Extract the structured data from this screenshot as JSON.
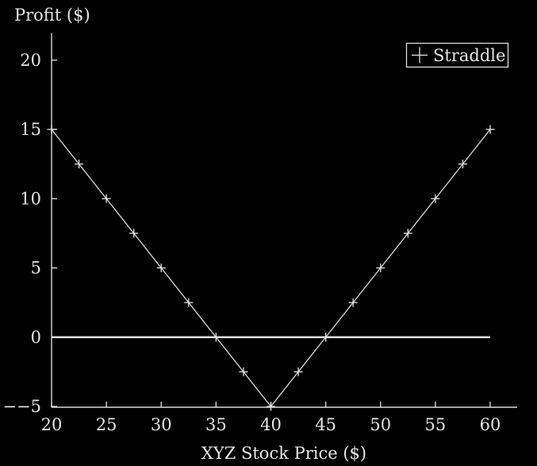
{
  "chart_data": {
    "type": "line",
    "xlabel": "XYZ Stock Price ($)",
    "ylabel": "Profit ($)",
    "xlim": [
      20,
      60
    ],
    "ylim": [
      -5,
      22
    ],
    "xticks": [
      20,
      25,
      30,
      35,
      40,
      45,
      50,
      55,
      60
    ],
    "xtick_labels": [
      "20",
      "25",
      "30",
      "35",
      "40",
      "45",
      "50",
      "55",
      "60"
    ],
    "yticks": [
      -5,
      0,
      5,
      10,
      15,
      20
    ],
    "ytick_labels": [
      "−−5",
      "0",
      "5",
      "10",
      "15",
      "20"
    ],
    "legend_position": "top-right",
    "grid": false,
    "series": [
      {
        "name": "Straddle",
        "marker": "plus",
        "x": [
          20,
          22.5,
          25,
          27.5,
          30,
          32.5,
          35,
          37.5,
          40,
          42.5,
          45,
          47.5,
          50,
          52.5,
          55,
          57.5,
          60
        ],
        "y": [
          15,
          12.5,
          10,
          7.5,
          5,
          2.5,
          0,
          -2.5,
          -5,
          -2.5,
          0,
          2.5,
          5,
          7.5,
          10,
          12.5,
          15
        ]
      }
    ],
    "reference_lines": [
      {
        "axis": "y",
        "value": 0,
        "from_x": 20,
        "to_x": 60
      }
    ]
  }
}
